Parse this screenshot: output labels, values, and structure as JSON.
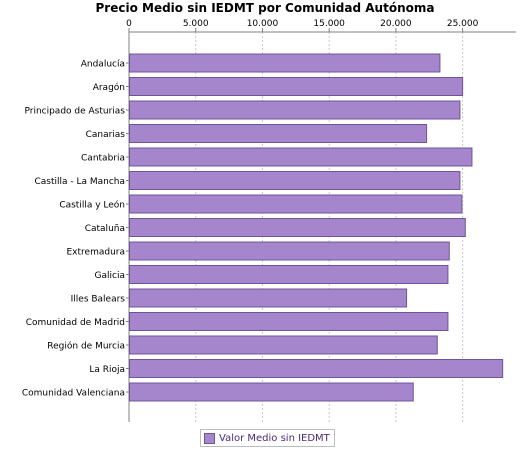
{
  "chart_data": {
    "type": "bar",
    "orientation": "horizontal",
    "title": "Precio Medio sin IEDMT por Comunidad Autónoma",
    "categories": [
      "Andalucía",
      "Aragón",
      "Principado de Asturias",
      "Canarias",
      "Cantabria",
      "Castilla - La Mancha",
      "Castilla y León",
      "Cataluña",
      "Extremadura",
      "Galicia",
      "Illes Balears",
      "Comunidad de Madrid",
      "Región de Murcia",
      "La Rioja",
      "Comunidad Valenciana"
    ],
    "series": [
      {
        "name": "Valor Medio sin IEDMT",
        "values": [
          23300,
          25000,
          24800,
          22300,
          25700,
          24800,
          24950,
          25200,
          24000,
          23900,
          20800,
          23900,
          23100,
          28000,
          21300
        ]
      }
    ],
    "xlim": [
      0,
      29000
    ],
    "ticks": [
      0,
      5000,
      10000,
      15000,
      20000,
      25000
    ],
    "tick_labels": [
      "0",
      "5.000",
      "10.000",
      "15.000",
      "20.000",
      "25.000"
    ],
    "axis_position": "top",
    "grid": true,
    "legend_position": "bottom",
    "colors": {
      "bar_fill": "#a585cc",
      "bar_stroke": "#6f5598",
      "grid": "#c8c8c8",
      "axis": "#808080",
      "legend_text": "#4b2a7a"
    }
  }
}
